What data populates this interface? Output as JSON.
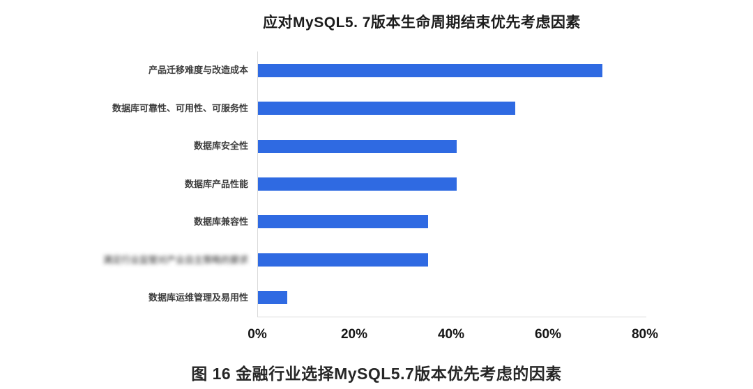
{
  "page": {
    "background": "#ffffff"
  },
  "chart_data": {
    "type": "bar",
    "orientation": "horizontal",
    "title": "应对MySQL5. 7版本生命周期结束优先考虑因素",
    "caption": "图 16 金融行业选择MySQL5.7版本优先考虑的因素",
    "categories": [
      "产品迁移难度与改造成本",
      "数据库可靠性、可用性、可服务性",
      "数据库安全性",
      "数据库产品性能",
      "数据库兼容性",
      "满足行业监管对产业自主策略的要求",
      "数据库运维管理及易用性"
    ],
    "values": [
      71,
      53,
      41,
      41,
      35,
      35,
      6
    ],
    "value_unit": "percent",
    "xlim": [
      0,
      80
    ],
    "xticks": [
      "0%",
      "20%",
      "40%",
      "60%",
      "80%"
    ],
    "bar_color": "#2f6ae2",
    "axis_line_color": "#d9d9d9",
    "blurred_category_index": 5,
    "legend": "none",
    "grid": "off"
  }
}
